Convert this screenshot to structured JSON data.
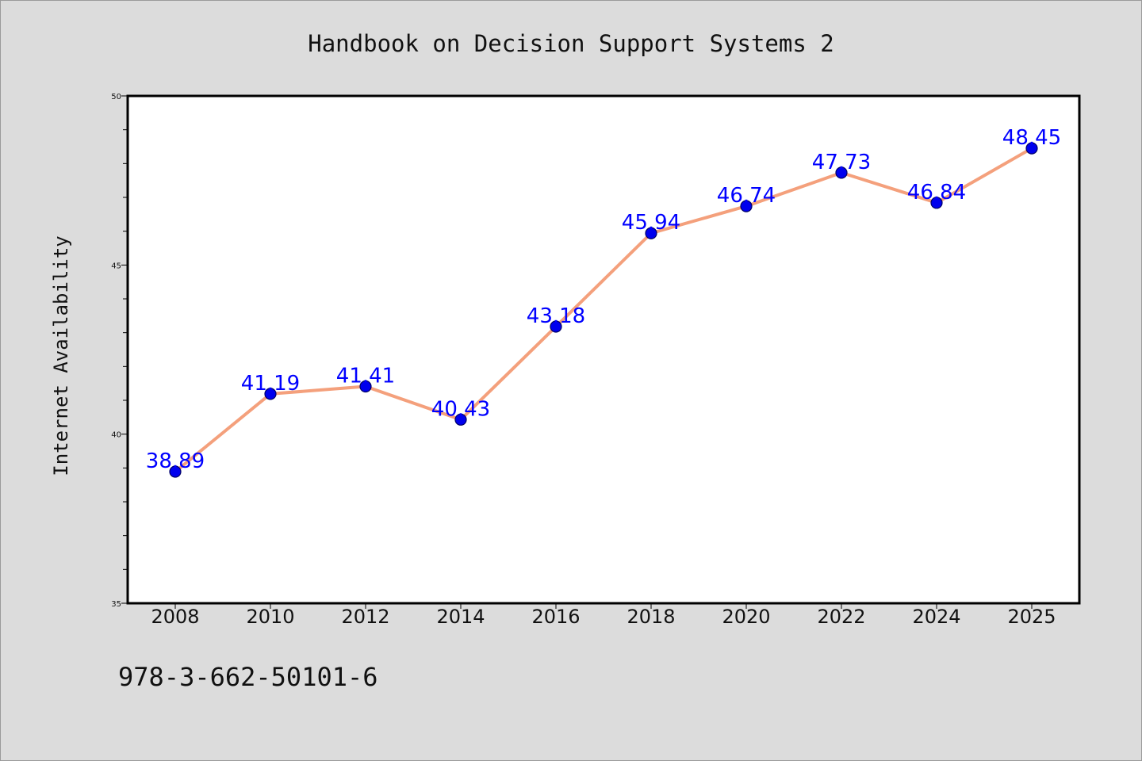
{
  "colors": {
    "figure_background": "#dcdcdc",
    "plot_background": "#ffffff",
    "line": "#f4a07c",
    "marker_fill": "#0000ee",
    "marker_edge": "#000066",
    "data_label": "#0000ff",
    "axes": "#000000"
  },
  "footer_text": "978-3-662-50101-6",
  "chart_data": {
    "type": "line",
    "title": "Handbook on Decision Support Systems 2",
    "xlabel": "",
    "ylabel": "Internet Availability",
    "categories": [
      "2008",
      "2010",
      "2012",
      "2014",
      "2016",
      "2018",
      "2020",
      "2022",
      "2024",
      "2025"
    ],
    "series": [
      {
        "values": [
          38.89,
          41.19,
          41.41,
          40.43,
          43.18,
          45.94,
          46.74,
          47.73,
          46.84,
          48.45
        ],
        "labels": [
          "38.89",
          "41.19",
          "41.41",
          "40.43",
          "43.18",
          "45.94",
          "46.74",
          "47.73",
          "46.84",
          "48.45"
        ]
      }
    ],
    "ylim": [
      35,
      50
    ],
    "yticks": [
      35,
      40,
      45,
      50
    ],
    "ytick_labels": [
      "35",
      "40",
      "45",
      "50"
    ],
    "y_minor_step": 1,
    "grid": false,
    "legend": "none",
    "markers": "circle"
  }
}
